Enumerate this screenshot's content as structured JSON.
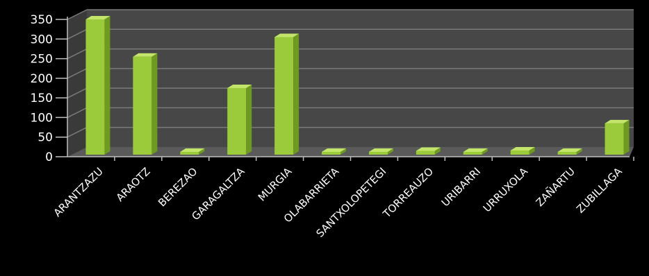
{
  "chart_data": {
    "type": "bar",
    "categories": [
      "ARANTZAZU",
      "ARAOTZ",
      "BEREZAO",
      "GARAGALTZA",
      "MURGIA",
      "OLABARRIETA",
      "SANTXOLOPETEGI",
      "TORREAUZO",
      "URIBARRI",
      "URRUXOLA",
      "ZAÑARTU",
      "ZUBILLAGA"
    ],
    "series": [
      {
        "values": [
          350,
          255,
          3,
          175,
          305,
          4,
          2,
          15,
          3,
          16,
          5,
          85
        ]
      }
    ],
    "yticks": [
      "0",
      "50",
      "100",
      "150",
      "200",
      "250",
      "300",
      "350"
    ],
    "ylim": [
      0,
      350
    ],
    "grid": true,
    "legend": "none",
    "colors": {
      "background": "#000000",
      "plot_back_wall": "#474747",
      "plot_floor": "#5a5a5a",
      "gridline": "#7a7a7a",
      "bar_front": "#9bcb3b",
      "bar_side": "#6e9a22",
      "bar_top": "#c3e66a",
      "text": "#ffffff"
    }
  }
}
